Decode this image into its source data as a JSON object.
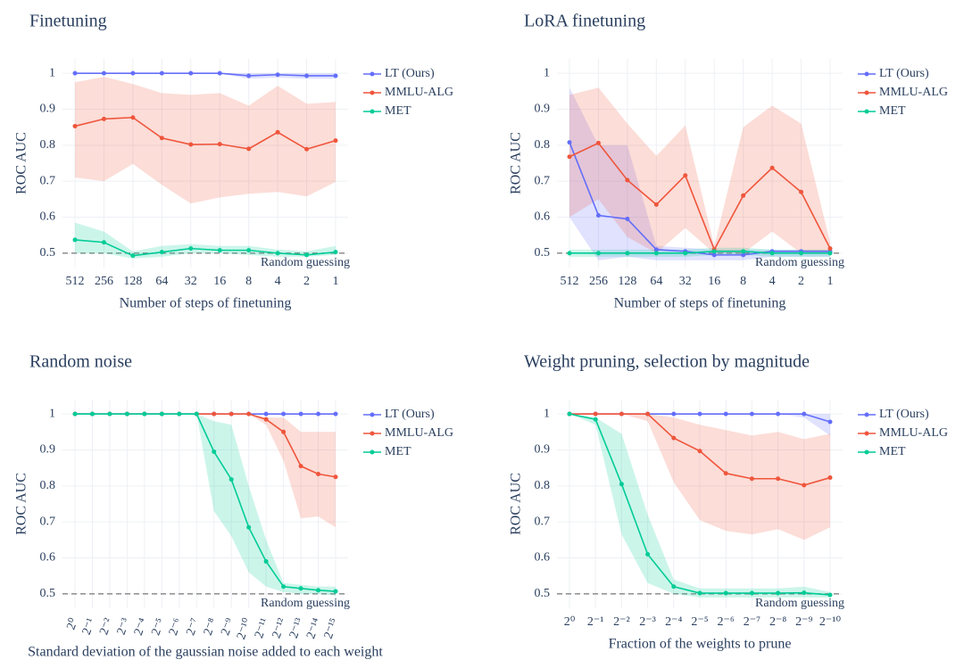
{
  "chart_data": [
    {
      "type": "line",
      "title": "Finetuning",
      "xlabel": "Number of steps of finetuning",
      "ylabel": "ROC AUC",
      "categories": [
        "512",
        "256",
        "128",
        "64",
        "32",
        "16",
        "8",
        "4",
        "2",
        "1"
      ],
      "ylim": [
        0.46,
        1.04
      ],
      "yticks": [
        0.5,
        0.6,
        0.7,
        0.8,
        0.9,
        1
      ],
      "grid": true,
      "baseline": 0.5,
      "baseline_label": "Random guessing",
      "series": [
        {
          "name": "LT (Ours)",
          "color": "#636efa",
          "values": [
            1,
            1,
            1,
            1,
            1,
            1,
            0.993,
            0.996,
            0.993,
            0.993
          ],
          "upper": [
            1,
            1,
            1,
            1,
            1,
            1,
            1,
            1,
            1,
            1
          ],
          "lower": [
            1,
            1,
            1,
            1,
            1,
            1,
            0.985,
            0.988,
            0.985,
            0.985
          ]
        },
        {
          "name": "MMLU-ALG",
          "color": "#ef553b",
          "values": [
            0.853,
            0.873,
            0.877,
            0.82,
            0.802,
            0.803,
            0.79,
            0.836,
            0.789,
            0.813
          ],
          "upper": [
            0.975,
            0.99,
            0.97,
            0.945,
            0.94,
            0.945,
            0.91,
            0.965,
            0.915,
            0.92
          ],
          "lower": [
            0.71,
            0.7,
            0.748,
            0.69,
            0.638,
            0.655,
            0.665,
            0.67,
            0.658,
            0.698
          ]
        },
        {
          "name": "MET",
          "color": "#00cc96",
          "values": [
            0.537,
            0.53,
            0.493,
            0.503,
            0.513,
            0.508,
            0.508,
            0.5,
            0.495,
            0.503
          ],
          "upper": [
            0.585,
            0.56,
            0.505,
            0.52,
            0.525,
            0.52,
            0.52,
            0.51,
            0.505,
            0.52
          ],
          "lower": [
            0.5,
            0.5,
            0.485,
            0.49,
            0.5,
            0.5,
            0.495,
            0.49,
            0.49,
            0.495
          ]
        }
      ]
    },
    {
      "type": "line",
      "title": "LoRA finetuning",
      "xlabel": "Number of steps of finetuning",
      "ylabel": "ROC AUC",
      "categories": [
        "512",
        "256",
        "128",
        "64",
        "32",
        "16",
        "8",
        "4",
        "2",
        "1"
      ],
      "ylim": [
        0.46,
        1.04
      ],
      "yticks": [
        0.5,
        0.6,
        0.7,
        0.8,
        0.9,
        1
      ],
      "grid": true,
      "baseline": 0.5,
      "baseline_label": "Random guessing",
      "series": [
        {
          "name": "LT (Ours)",
          "color": "#636efa",
          "values": [
            0.808,
            0.605,
            0.595,
            0.51,
            0.505,
            0.495,
            0.495,
            0.505,
            0.505,
            0.505
          ],
          "upper": [
            0.96,
            0.8,
            0.8,
            0.52,
            0.515,
            0.51,
            0.51,
            0.51,
            0.51,
            0.51
          ],
          "lower": [
            0.6,
            0.48,
            0.49,
            0.48,
            0.48,
            0.48,
            0.48,
            0.49,
            0.49,
            0.49
          ]
        },
        {
          "name": "MMLU-ALG",
          "color": "#ef553b",
          "values": [
            0.768,
            0.806,
            0.703,
            0.635,
            0.716,
            0.51,
            0.66,
            0.737,
            0.67,
            0.513
          ],
          "upper": [
            0.94,
            0.96,
            0.86,
            0.77,
            0.855,
            0.52,
            0.85,
            0.91,
            0.86,
            0.53
          ],
          "lower": [
            0.6,
            0.65,
            0.545,
            0.5,
            0.57,
            0.5,
            0.5,
            0.56,
            0.5,
            0.5
          ]
        },
        {
          "name": "MET",
          "color": "#00cc96",
          "values": [
            0.5,
            0.5,
            0.5,
            0.5,
            0.5,
            0.505,
            0.505,
            0.5,
            0.5,
            0.5
          ],
          "upper": [
            0.51,
            0.51,
            0.51,
            0.51,
            0.51,
            0.515,
            0.515,
            0.51,
            0.51,
            0.51
          ],
          "lower": [
            0.49,
            0.49,
            0.49,
            0.49,
            0.49,
            0.495,
            0.495,
            0.49,
            0.49,
            0.49
          ]
        }
      ]
    },
    {
      "type": "line",
      "title": "Random noise",
      "xlabel": "Standard deviation of the gaussian noise added to each weight",
      "ylabel": "ROC AUC",
      "categories": [
        "2⁰",
        "2⁻¹",
        "2⁻²",
        "2⁻³",
        "2⁻⁴",
        "2⁻⁵",
        "2⁻⁶",
        "2⁻⁷",
        "2⁻⁸",
        "2⁻⁹",
        "2⁻¹⁰",
        "2⁻¹¹",
        "2⁻¹²",
        "2⁻¹³",
        "2⁻¹⁴",
        "2⁻¹⁵"
      ],
      "x_tick_rotation": -70,
      "ylim": [
        0.46,
        1.04
      ],
      "yticks": [
        0.5,
        0.6,
        0.7,
        0.8,
        0.9,
        1
      ],
      "grid": true,
      "baseline": 0.5,
      "baseline_label": "Random guessing",
      "series": [
        {
          "name": "LT (Ours)",
          "color": "#636efa",
          "values": [
            1,
            1,
            1,
            1,
            1,
            1,
            1,
            1,
            1,
            1,
            1,
            1,
            1,
            1,
            1,
            1
          ]
        },
        {
          "name": "MMLU-ALG",
          "color": "#ef553b",
          "values": [
            1,
            1,
            1,
            1,
            1,
            1,
            1,
            1,
            1,
            1,
            1,
            0.985,
            0.95,
            0.855,
            0.833,
            0.825
          ],
          "upper": [
            1,
            1,
            1,
            1,
            1,
            1,
            1,
            1,
            1,
            1,
            1,
            0.99,
            0.99,
            0.95,
            0.95,
            0.95
          ],
          "lower": [
            1,
            1,
            1,
            1,
            1,
            1,
            1,
            1,
            1,
            1,
            1,
            0.97,
            0.87,
            0.71,
            0.715,
            0.685
          ]
        },
        {
          "name": "MET",
          "color": "#00cc96",
          "values": [
            1,
            1,
            1,
            1,
            1,
            1,
            1,
            1,
            0.895,
            0.818,
            0.685,
            0.59,
            0.52,
            0.515,
            0.51,
            0.507
          ],
          "upper": [
            1,
            1,
            1,
            1,
            1,
            1,
            1,
            1,
            0.98,
            0.97,
            0.8,
            0.65,
            0.53,
            0.525,
            0.52,
            0.52
          ],
          "lower": [
            1,
            1,
            1,
            1,
            1,
            1,
            1,
            1,
            0.73,
            0.66,
            0.56,
            0.52,
            0.505,
            0.5,
            0.5,
            0.495
          ]
        }
      ]
    },
    {
      "type": "line",
      "title": "Weight pruning, selection by magnitude",
      "xlabel": "Fraction of the weights to prune",
      "ylabel": "ROC AUC",
      "categories": [
        "2⁰",
        "2⁻¹",
        "2⁻²",
        "2⁻³",
        "2⁻⁴",
        "2⁻⁵",
        "2⁻⁶",
        "2⁻⁷",
        "2⁻⁸",
        "2⁻⁹",
        "2⁻¹⁰"
      ],
      "ylim": [
        0.46,
        1.04
      ],
      "yticks": [
        0.5,
        0.6,
        0.7,
        0.8,
        0.9,
        1
      ],
      "grid": true,
      "baseline": 0.5,
      "baseline_label": "Random guessing",
      "series": [
        {
          "name": "LT (Ours)",
          "color": "#636efa",
          "values": [
            1,
            1,
            1,
            1,
            1,
            1,
            1,
            1,
            1,
            1,
            0.978
          ],
          "upper": [
            1,
            1,
            1,
            1,
            1,
            1,
            1,
            1,
            1,
            1,
            1
          ],
          "lower": [
            1,
            1,
            1,
            1,
            1,
            1,
            1,
            1,
            1,
            0.99,
            0.94
          ]
        },
        {
          "name": "MMLU-ALG",
          "color": "#ef553b",
          "values": [
            1,
            1,
            1,
            1,
            0.933,
            0.897,
            0.835,
            0.82,
            0.82,
            0.802,
            0.823
          ],
          "upper": [
            1,
            1,
            1,
            1,
            0.99,
            0.97,
            0.955,
            0.94,
            0.95,
            0.93,
            0.945
          ],
          "lower": [
            1,
            1,
            1,
            0.98,
            0.81,
            0.705,
            0.675,
            0.665,
            0.68,
            0.65,
            0.685
          ]
        },
        {
          "name": "MET",
          "color": "#00cc96",
          "values": [
            1,
            0.985,
            0.805,
            0.61,
            0.52,
            0.502,
            0.502,
            0.502,
            0.502,
            0.503,
            0.497
          ],
          "upper": [
            1,
            0.99,
            0.945,
            0.72,
            0.54,
            0.515,
            0.515,
            0.515,
            0.515,
            0.52,
            0.505
          ],
          "lower": [
            1,
            0.97,
            0.665,
            0.53,
            0.5,
            0.49,
            0.49,
            0.49,
            0.49,
            0.49,
            0.49
          ]
        }
      ]
    }
  ]
}
